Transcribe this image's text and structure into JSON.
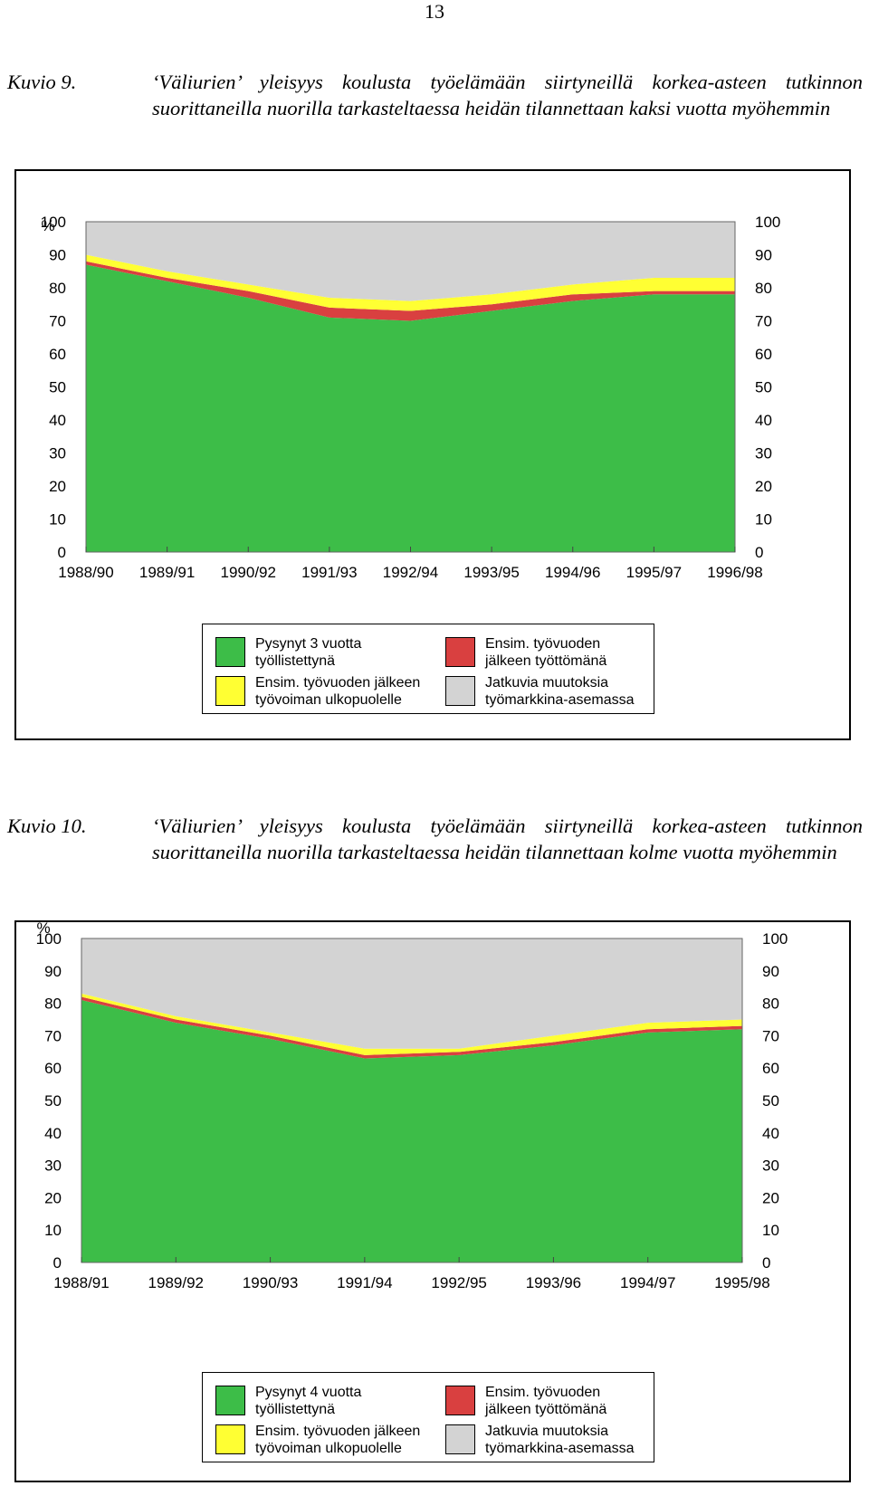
{
  "page_number": "13",
  "legend_colors": {
    "green": "#3dbd48",
    "yellow": "#ffff33",
    "red": "#d94040",
    "gray": "#d3d3d3"
  },
  "figures": [
    {
      "label": "Kuvio 9.",
      "title": "‘Väliurien’ yleisyys koulusta työelämään siirtyneillä korkea-asteen tutkinnon suorittaneilla nuorilla tarkasteltaessa heidän tilannettaan kaksi vuotta myöhemmin",
      "percent_sign": "%",
      "legend": [
        {
          "swatch": "green",
          "line1": "Pysynyt 3 vuotta",
          "line2": "työllistettynä"
        },
        {
          "swatch": "red",
          "line1": "Ensim. työvuoden",
          "line2": "jälkeen työttömänä"
        },
        {
          "swatch": "yellow",
          "line1": "Ensim. työvuoden jälkeen",
          "line2": "työvoiman ulkopuolelle"
        },
        {
          "swatch": "gray",
          "line1": "Jatkuvia muutoksia",
          "line2": "työmarkkina-asemassa"
        }
      ]
    },
    {
      "label": "Kuvio 10.",
      "title": "‘Väliurien’ yleisyys koulusta työelämään siirtyneillä korkea-asteen tutkinnon suorittaneilla nuorilla tarkasteltaessa heidän tilannettaan kolme vuotta myöhemmin",
      "percent_sign": "%",
      "legend": [
        {
          "swatch": "green",
          "line1": "Pysynyt 4 vuotta",
          "line2": "työllistettynä"
        },
        {
          "swatch": "red",
          "line1": "Ensim. työvuoden",
          "line2": "jälkeen työttömänä"
        },
        {
          "swatch": "yellow",
          "line1": "Ensim. työvuoden jälkeen",
          "line2": "työvoiman ulkopuolelle"
        },
        {
          "swatch": "gray",
          "line1": "Jatkuvia muutoksia",
          "line2": "työmarkkina-asemassa"
        }
      ]
    }
  ],
  "chart_data": [
    {
      "type": "area",
      "stacked": true,
      "categories": [
        "1988/90",
        "1989/91",
        "1990/92",
        "1991/93",
        "1992/94",
        "1993/95",
        "1994/96",
        "1995/97",
        "1996/98"
      ],
      "ylim": [
        0,
        100
      ],
      "yticks": [
        0,
        10,
        20,
        30,
        40,
        50,
        60,
        70,
        80,
        90,
        100
      ],
      "ylabel": "%",
      "xlabel": "",
      "grid": false,
      "legend_position": "bottom",
      "series": [
        {
          "name": "Pysynyt 3 vuotta työllistettynä",
          "color": "#3dbd48",
          "values": [
            87,
            82,
            77,
            71,
            70,
            73,
            76,
            78,
            78
          ]
        },
        {
          "name": "Ensim. työvuoden jälkeen työttömänä",
          "color": "#d94040",
          "values": [
            1,
            1,
            2,
            3,
            3,
            2,
            2,
            1,
            1
          ]
        },
        {
          "name": "Ensim. työvuoden jälkeen työvoiman ulkopuolelle",
          "color": "#ffff33",
          "values": [
            2,
            2,
            2,
            3,
            3,
            3,
            3,
            4,
            4
          ]
        },
        {
          "name": "Jatkuvia muutoksia työmarkkina-asemassa",
          "color": "#d3d3d3",
          "values": [
            10,
            15,
            19,
            23,
            24,
            22,
            19,
            17,
            17
          ]
        }
      ]
    },
    {
      "type": "area",
      "stacked": true,
      "categories": [
        "1988/91",
        "1989/92",
        "1990/93",
        "1991/94",
        "1992/95",
        "1993/96",
        "1994/97",
        "1995/98"
      ],
      "ylim": [
        0,
        100
      ],
      "yticks": [
        0,
        10,
        20,
        30,
        40,
        50,
        60,
        70,
        80,
        90,
        100
      ],
      "ylabel": "%",
      "xlabel": "",
      "grid": false,
      "legend_position": "bottom",
      "series": [
        {
          "name": "Pysynyt 4 vuotta työllistettynä",
          "color": "#3dbd48",
          "values": [
            81,
            74,
            69,
            63,
            64,
            67,
            71,
            72
          ]
        },
        {
          "name": "Ensim. työvuoden jälkeen työttömänä",
          "color": "#d94040",
          "values": [
            1,
            1,
            1,
            1,
            1,
            1,
            1,
            1
          ]
        },
        {
          "name": "Ensim. työvuoden jälkeen työvoiman ulkopuolelle",
          "color": "#ffff33",
          "values": [
            1,
            1,
            1,
            2,
            1,
            2,
            2,
            2
          ]
        },
        {
          "name": "Jatkuvia muutoksia työmarkkina-asemassa",
          "color": "#d3d3d3",
          "values": [
            17,
            24,
            29,
            34,
            34,
            30,
            26,
            25
          ]
        }
      ]
    }
  ]
}
